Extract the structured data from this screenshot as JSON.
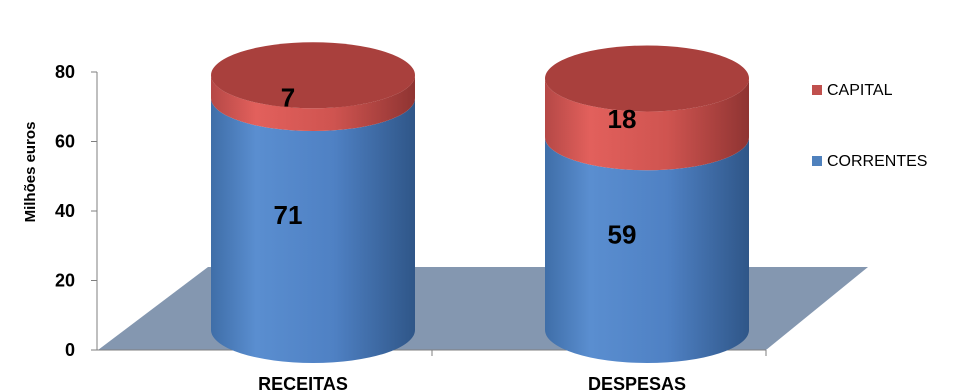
{
  "chart_data": {
    "type": "bar",
    "stacked": true,
    "style": "3d-cylinder",
    "categories": [
      "RECEITAS",
      "DESPESAS"
    ],
    "series": [
      {
        "name": "CORRENTES",
        "values": [
          71,
          59
        ],
        "color": "#4f81bd"
      },
      {
        "name": "CAPITAL",
        "values": [
          7,
          18
        ],
        "color": "#c0504d"
      }
    ],
    "ylabel": "Milhões euros",
    "ylim": [
      0,
      80
    ],
    "yticks": [
      "0",
      "20",
      "40",
      "60",
      "80"
    ],
    "legend_position": "right",
    "floor_color": "#8497b0"
  }
}
